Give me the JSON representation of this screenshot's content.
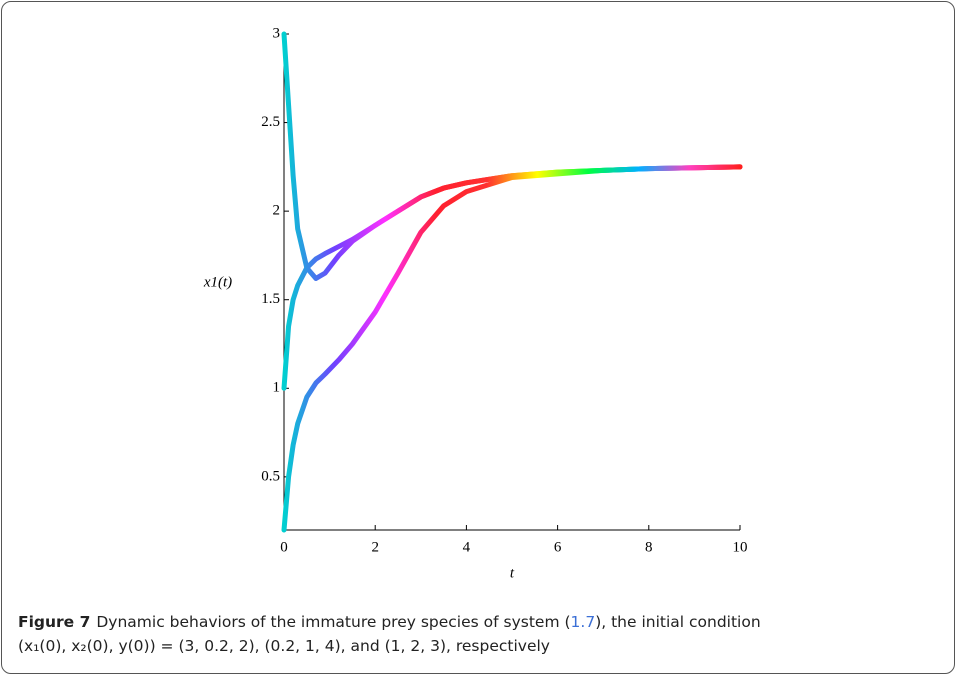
{
  "chart_data": {
    "type": "line",
    "x_label": "t",
    "y_label": "x1(t)",
    "x": [
      0,
      0.1,
      0.2,
      0.3,
      0.5,
      0.7,
      0.9,
      1.2,
      1.5,
      2,
      2.5,
      3,
      3.5,
      4,
      5,
      6,
      7,
      8,
      9,
      10
    ],
    "series": [
      {
        "values": [
          3,
          2.6,
          2.2,
          1.9,
          1.68,
          1.62,
          1.65,
          1.75,
          1.83,
          1.92,
          2.0,
          2.08,
          2.13,
          2.16,
          2.2,
          2.22,
          2.23,
          2.24,
          2.245,
          2.25
        ]
      },
      {
        "values": [
          1,
          1.35,
          1.5,
          1.58,
          1.68,
          1.73,
          1.76,
          1.8,
          1.84,
          1.92,
          2.0,
          2.08,
          2.13,
          2.16,
          2.2,
          2.22,
          2.23,
          2.24,
          2.245,
          2.25
        ]
      },
      {
        "values": [
          0.2,
          0.5,
          0.68,
          0.8,
          0.95,
          1.03,
          1.08,
          1.16,
          1.25,
          1.43,
          1.65,
          1.88,
          2.03,
          2.11,
          2.19,
          2.21,
          2.23,
          2.24,
          2.245,
          2.25
        ]
      }
    ],
    "colors": [
      "#00d0d0",
      "#7040ff",
      "#ff30ff",
      "#ff2030",
      "#ff3030",
      "#ffff00",
      "#00ff40",
      "#00b0ff",
      "#ff40c0",
      "#ff2020"
    ],
    "xlim": [
      0,
      10
    ],
    "xticks": [
      0,
      2,
      4,
      6,
      8,
      10
    ],
    "ylim": [
      0.2,
      3
    ],
    "yticks": [
      0.5,
      1,
      1.5,
      2,
      2.5,
      3
    ]
  },
  "caption": {
    "label": "Figure 7",
    "text_before": "Dynamic behaviors of the immature prey species of system (",
    "ref": "1.7",
    "text_after": "), the initial condition",
    "line2": "(x₁(0), x₂(0), y(0)) = (3, 0.2, 2), (0.2, 1, 4), and (1, 2, 3), respectively"
  }
}
